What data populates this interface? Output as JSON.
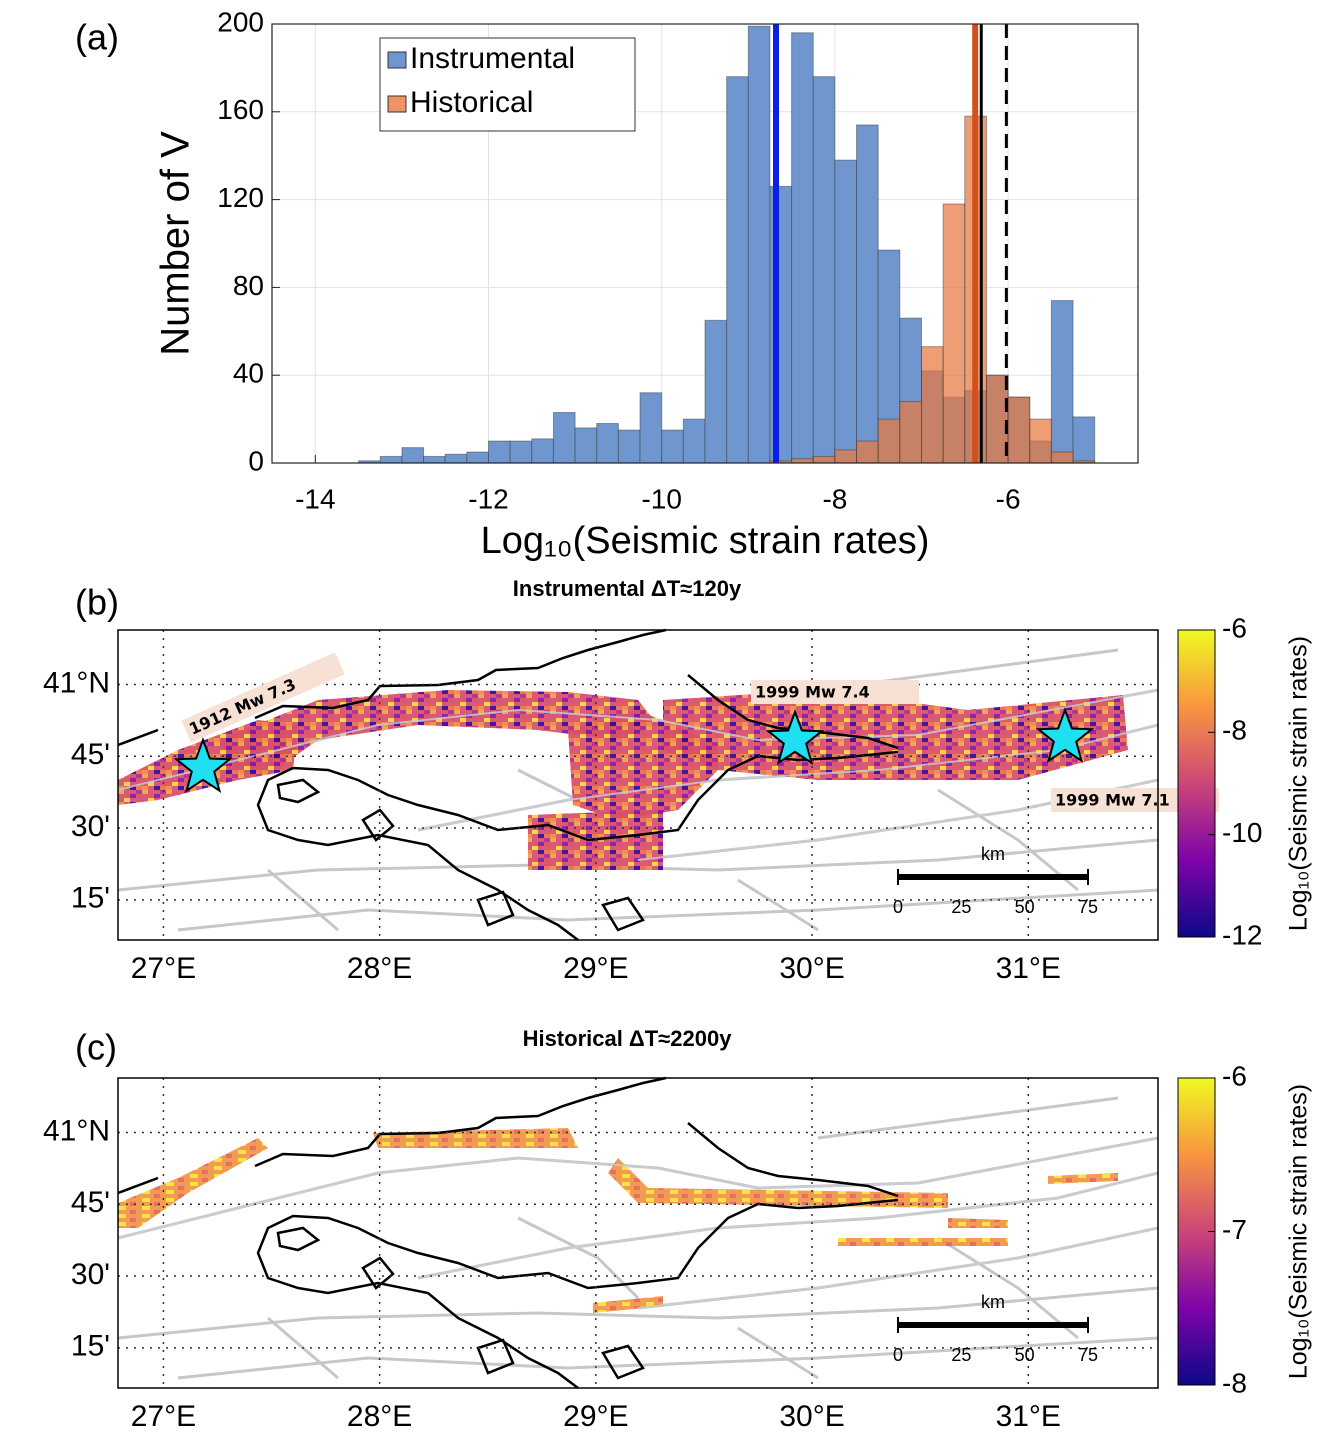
{
  "chart_data": {
    "type": "histogram",
    "panel_label": "(a)",
    "xlabel": "Log₁₀(Seismic strain rates)",
    "ylabel": "Number of V",
    "bins": [
      -14,
      -13.75,
      -13.5,
      -13.25,
      -13,
      -12.75,
      -12.5,
      -12.25,
      -12,
      -11.75,
      -11.5,
      -11.25,
      -11,
      -10.75,
      -10.5,
      -10.25,
      -10,
      -9.75,
      -9.5,
      -9.25,
      -9,
      -8.75,
      -8.5,
      -8.25,
      -8,
      -7.75,
      -7.5,
      -7.25,
      -7,
      -6.75,
      -6.5,
      -6.25,
      -6,
      -5.75,
      -5.5,
      -5.25,
      -5
    ],
    "series": [
      {
        "name": "Instrumental",
        "color": "#7096cf",
        "values": [
          0,
          0,
          1,
          3,
          7,
          3,
          4,
          5,
          10,
          10,
          11,
          23,
          16,
          18,
          15,
          32,
          15,
          20,
          65,
          176,
          199,
          126,
          196,
          176,
          138,
          154,
          97,
          66,
          42,
          30,
          33,
          40,
          30,
          10,
          74,
          21
        ]
      },
      {
        "name": "Historical",
        "color": "#e8783e",
        "values": [
          0,
          0,
          0,
          0,
          0,
          0,
          0,
          0,
          0,
          0,
          0,
          0,
          0,
          0,
          0,
          0,
          0,
          0,
          0,
          0,
          0,
          1,
          2,
          3,
          6,
          10,
          20,
          28,
          53,
          118,
          158,
          40,
          30,
          20,
          5,
          1
        ]
      }
    ],
    "vlines": [
      {
        "x": -8.68,
        "color": "#0a1fe6",
        "style": "solid"
      },
      {
        "x": -6.38,
        "color": "#d4501a",
        "style": "solid"
      },
      {
        "x": -6.31,
        "color": "#000000",
        "style": "solid"
      },
      {
        "x": -6.02,
        "color": "#000000",
        "style": "dashed"
      }
    ],
    "xlim": [
      -14.5,
      -4.5
    ],
    "ylim": [
      0,
      200
    ],
    "xticks": [
      -14,
      -12,
      -10,
      -8,
      -6
    ],
    "yticks": [
      0,
      40,
      80,
      120,
      160,
      200
    ],
    "grid": true,
    "legend": "upper left"
  },
  "maps": [
    {
      "panel_label": "(b)",
      "title": "Instrumental ΔT≈120y",
      "lonlim": [
        26.79,
        31.6
      ],
      "latlim": [
        40.11,
        41.19
      ],
      "lon_ticks": [
        {
          "value": 27,
          "label": "27°E"
        },
        {
          "value": 28,
          "label": "28°E"
        },
        {
          "value": 29,
          "label": "29°E"
        },
        {
          "value": 30,
          "label": "30°E"
        },
        {
          "value": 31,
          "label": "31°E"
        }
      ],
      "lat_ticks": [
        {
          "value": 41,
          "label": "41°N"
        },
        {
          "value": 40.75,
          "label": "45'"
        },
        {
          "value": 40.5,
          "label": "30'"
        },
        {
          "value": 40.25,
          "label": "15'"
        }
      ],
      "colorbar": {
        "label": "Log₁₀(Seismic strain rates)",
        "lim": [
          -12,
          -6
        ],
        "ticks": [
          -6,
          -8,
          -10,
          -12
        ]
      },
      "annotations": [
        "1912 Mw 7.3",
        "1999 Mw 7.4",
        "1999 Mw 7.1"
      ],
      "scale": {
        "unit": "km",
        "ticks": [
          "0",
          "25",
          "50",
          "75"
        ]
      }
    },
    {
      "panel_label": "(c)",
      "title": "Historical ΔT≈2200y",
      "lonlim": [
        26.79,
        31.6
      ],
      "latlim": [
        40.11,
        41.19
      ],
      "lon_ticks": [
        {
          "value": 27,
          "label": "27°E"
        },
        {
          "value": 28,
          "label": "28°E"
        },
        {
          "value": 29,
          "label": "29°E"
        },
        {
          "value": 30,
          "label": "30°E"
        },
        {
          "value": 31,
          "label": "31°E"
        }
      ],
      "lat_ticks": [
        {
          "value": 41,
          "label": "41°N"
        },
        {
          "value": 40.75,
          "label": "45'"
        },
        {
          "value": 40.5,
          "label": "30'"
        },
        {
          "value": 40.25,
          "label": "15'"
        }
      ],
      "colorbar": {
        "label": "Log₁₀(Seismic strain rates)",
        "lim": [
          -8,
          -6
        ],
        "ticks": [
          -6,
          -7,
          -8
        ]
      },
      "scale": {
        "unit": "km",
        "ticks": [
          "0",
          "25",
          "50",
          "75"
        ]
      }
    }
  ]
}
